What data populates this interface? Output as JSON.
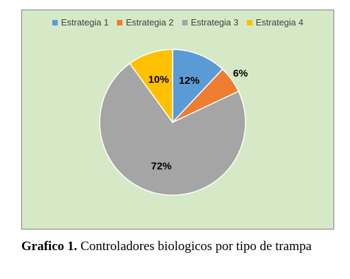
{
  "chart_data": {
    "type": "pie",
    "categories": [
      "Estrategia 1",
      "Estrategia 2",
      "Estrategia 3",
      "Estrategia 4"
    ],
    "values": [
      12,
      6,
      72,
      10
    ],
    "labels": [
      "12%",
      "6%",
      "72%",
      "10%"
    ],
    "colors": [
      "#5b9bd5",
      "#ed7d31",
      "#a5a5a5",
      "#ffc000"
    ],
    "legend_position": "top",
    "background": "#d6e9c6"
  },
  "caption": {
    "label": "Grafico 1.",
    "text": "Controladores biologicos por tipo de trampa"
  }
}
